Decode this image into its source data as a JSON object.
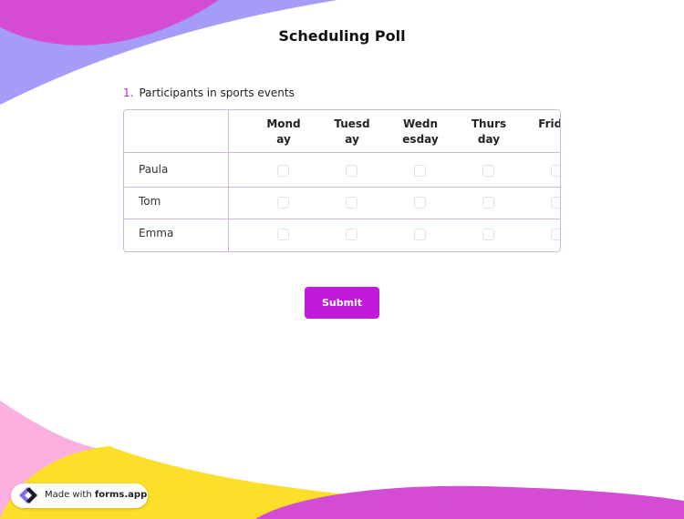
{
  "title": "Scheduling Poll",
  "question": {
    "number": "1.",
    "label": "Participants in sports events"
  },
  "columns": [
    "Monday",
    "Tuesday",
    "Wednesday",
    "Thursday",
    "Friday"
  ],
  "rows": [
    "Paula",
    "Tom",
    "Emma"
  ],
  "submit_label": "Submit",
  "badge": {
    "prefix": "Made with",
    "brand": "forms.app"
  },
  "colors": {
    "accent": "#c11ad8",
    "lavender": "#a59cf8",
    "magenta": "#d44bd4",
    "pink": "#fbb0e0",
    "yellow": "#fddf2a"
  }
}
